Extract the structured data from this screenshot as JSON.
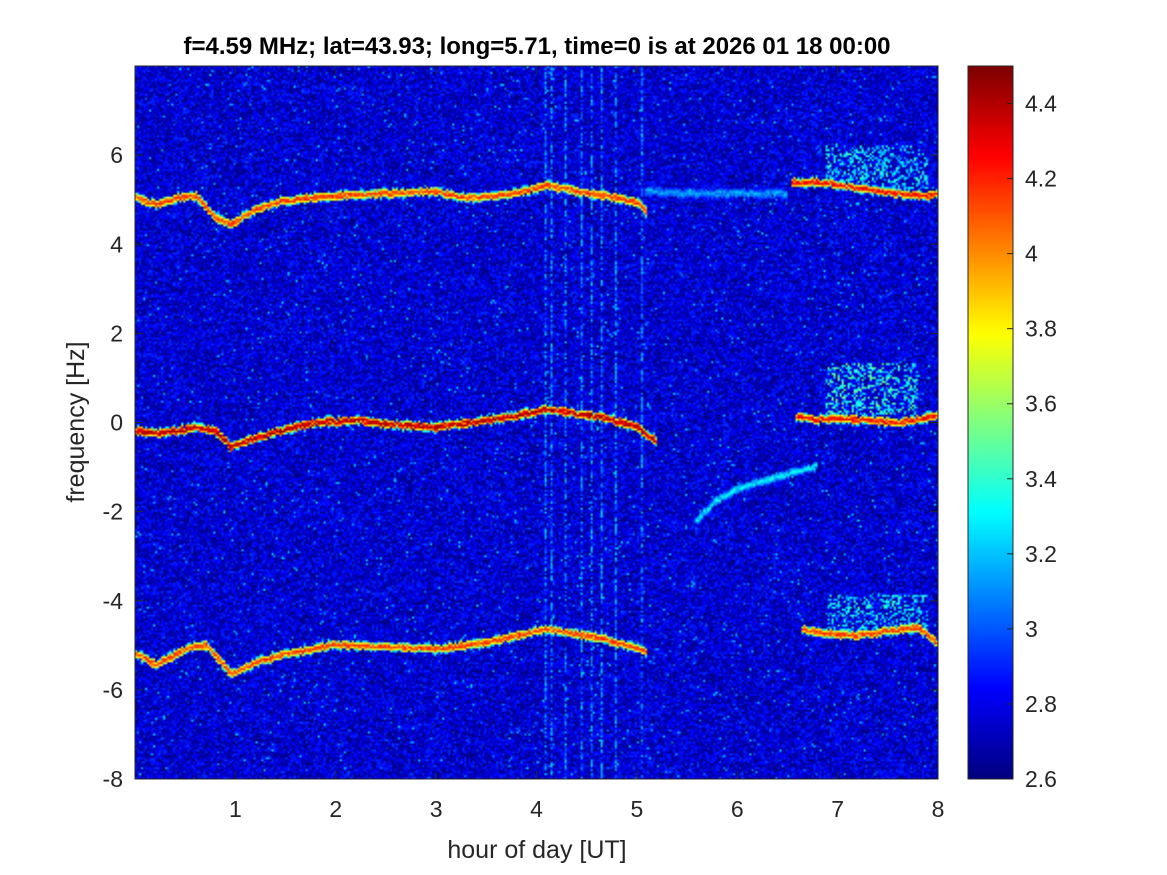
{
  "chart_data": {
    "type": "heatmap",
    "title": "f=4.59 MHz;  lat=43.93; long=5.71, time=0 is at 2026 01 18 00:00",
    "xlabel": "hour of day [UT]",
    "ylabel": "frequency [Hz]",
    "xlim": [
      0,
      8
    ],
    "ylim": [
      -8,
      8
    ],
    "x_ticks": [
      1,
      2,
      3,
      4,
      5,
      6,
      7,
      8
    ],
    "x_tick_labels": [
      "1",
      "2",
      "3",
      "4",
      "5",
      "6",
      "7",
      "8"
    ],
    "y_ticks": [
      -8,
      -6,
      -4,
      -2,
      0,
      2,
      4,
      6
    ],
    "y_tick_labels": [
      "-8",
      "-6",
      "-4",
      "-2",
      "0",
      "2",
      "4",
      "6"
    ],
    "colorbar": {
      "colormap": "jet",
      "range": [
        2.6,
        4.5
      ],
      "ticks": [
        2.6,
        2.8,
        3,
        3.2,
        3.4,
        3.6,
        3.8,
        4,
        4.2,
        4.4
      ],
      "tick_labels": [
        "2.6",
        "2.8",
        "3",
        "3.2",
        "3.4",
        "3.6",
        "3.8",
        "4",
        "4.2",
        "4.4"
      ]
    },
    "background_level": 2.75,
    "traces": [
      {
        "name_hint": "upper Doppler sideband",
        "points": [
          [
            0,
            5.05
          ],
          [
            0.2,
            4.9
          ],
          [
            0.4,
            5.05
          ],
          [
            0.6,
            5.1
          ],
          [
            0.8,
            4.6
          ],
          [
            0.95,
            4.45
          ],
          [
            1.2,
            4.8
          ],
          [
            1.5,
            5.0
          ],
          [
            2.0,
            5.1
          ],
          [
            2.5,
            5.15
          ],
          [
            3.0,
            5.2
          ],
          [
            3.3,
            5.05
          ],
          [
            3.6,
            5.1
          ],
          [
            3.9,
            5.2
          ],
          [
            4.1,
            5.35
          ],
          [
            4.4,
            5.2
          ],
          [
            4.7,
            5.1
          ],
          [
            5.0,
            4.95
          ],
          [
            5.1,
            4.75
          ]
        ],
        "intensity": 4.1
      },
      {
        "name_hint": "carrier",
        "points": [
          [
            0,
            -0.2
          ],
          [
            0.3,
            -0.25
          ],
          [
            0.6,
            -0.1
          ],
          [
            0.8,
            -0.2
          ],
          [
            0.95,
            -0.55
          ],
          [
            1.2,
            -0.35
          ],
          [
            1.5,
            -0.15
          ],
          [
            1.8,
            0.0
          ],
          [
            2.2,
            0.05
          ],
          [
            2.6,
            -0.05
          ],
          [
            3.0,
            -0.1
          ],
          [
            3.4,
            0.0
          ],
          [
            3.8,
            0.15
          ],
          [
            4.1,
            0.3
          ],
          [
            4.4,
            0.2
          ],
          [
            4.7,
            0.1
          ],
          [
            5.0,
            -0.1
          ],
          [
            5.2,
            -0.45
          ]
        ],
        "intensity": 4.35
      },
      {
        "name_hint": "lower Doppler sideband",
        "points": [
          [
            0,
            -5.2
          ],
          [
            0.2,
            -5.45
          ],
          [
            0.5,
            -5.1
          ],
          [
            0.7,
            -5.0
          ],
          [
            0.95,
            -5.65
          ],
          [
            1.2,
            -5.4
          ],
          [
            1.5,
            -5.2
          ],
          [
            2.0,
            -5.0
          ],
          [
            2.5,
            -5.05
          ],
          [
            3.0,
            -5.1
          ],
          [
            3.5,
            -4.95
          ],
          [
            3.9,
            -4.75
          ],
          [
            4.1,
            -4.65
          ],
          [
            4.5,
            -4.8
          ],
          [
            4.8,
            -4.95
          ],
          [
            5.1,
            -5.15
          ]
        ],
        "intensity": 4.1
      },
      {
        "name_hint": "weak upper band after 5 UT",
        "points": [
          [
            5.1,
            5.2
          ],
          [
            5.5,
            5.15
          ],
          [
            6.0,
            5.15
          ],
          [
            6.5,
            5.15
          ]
        ],
        "intensity": 3.1
      },
      {
        "name_hint": "weak diagonal trace",
        "points": [
          [
            5.6,
            -2.2
          ],
          [
            5.8,
            -1.75
          ],
          [
            6.0,
            -1.5
          ],
          [
            6.3,
            -1.3
          ],
          [
            6.6,
            -1.1
          ],
          [
            6.8,
            -1.0
          ]
        ],
        "intensity": 3.25
      },
      {
        "name_hint": "late upper band",
        "points": [
          [
            6.55,
            5.4
          ],
          [
            6.8,
            5.4
          ],
          [
            7.0,
            5.35
          ],
          [
            7.3,
            5.25
          ],
          [
            7.6,
            5.15
          ],
          [
            7.9,
            5.1
          ],
          [
            8.0,
            5.15
          ]
        ],
        "intensity": 4.2
      },
      {
        "name_hint": "late carrier band",
        "points": [
          [
            6.6,
            0.15
          ],
          [
            6.8,
            0.05
          ],
          [
            7.0,
            0.1
          ],
          [
            7.3,
            0.05
          ],
          [
            7.6,
            0.0
          ],
          [
            7.9,
            0.1
          ],
          [
            8.0,
            0.15
          ]
        ],
        "intensity": 4.2
      },
      {
        "name_hint": "late lower band",
        "points": [
          [
            6.65,
            -4.65
          ],
          [
            6.9,
            -4.75
          ],
          [
            7.2,
            -4.8
          ],
          [
            7.5,
            -4.7
          ],
          [
            7.8,
            -4.6
          ],
          [
            8.0,
            -4.95
          ]
        ],
        "intensity": 4.1
      }
    ],
    "diffuse_patches": [
      {
        "x": [
          6.9,
          7.9
        ],
        "y": [
          5.3,
          6.2
        ],
        "intensity": 3.4
      },
      {
        "x": [
          6.9,
          7.8
        ],
        "y": [
          0.2,
          1.3
        ],
        "intensity": 3.5
      },
      {
        "x": [
          6.9,
          7.9
        ],
        "y": [
          -4.7,
          -3.9
        ],
        "intensity": 3.4
      }
    ],
    "vertical_streaks_x": [
      4.1,
      4.15,
      4.3,
      4.45,
      4.55,
      4.65,
      4.8,
      5.05
    ],
    "grid": false,
    "legend": "none"
  }
}
